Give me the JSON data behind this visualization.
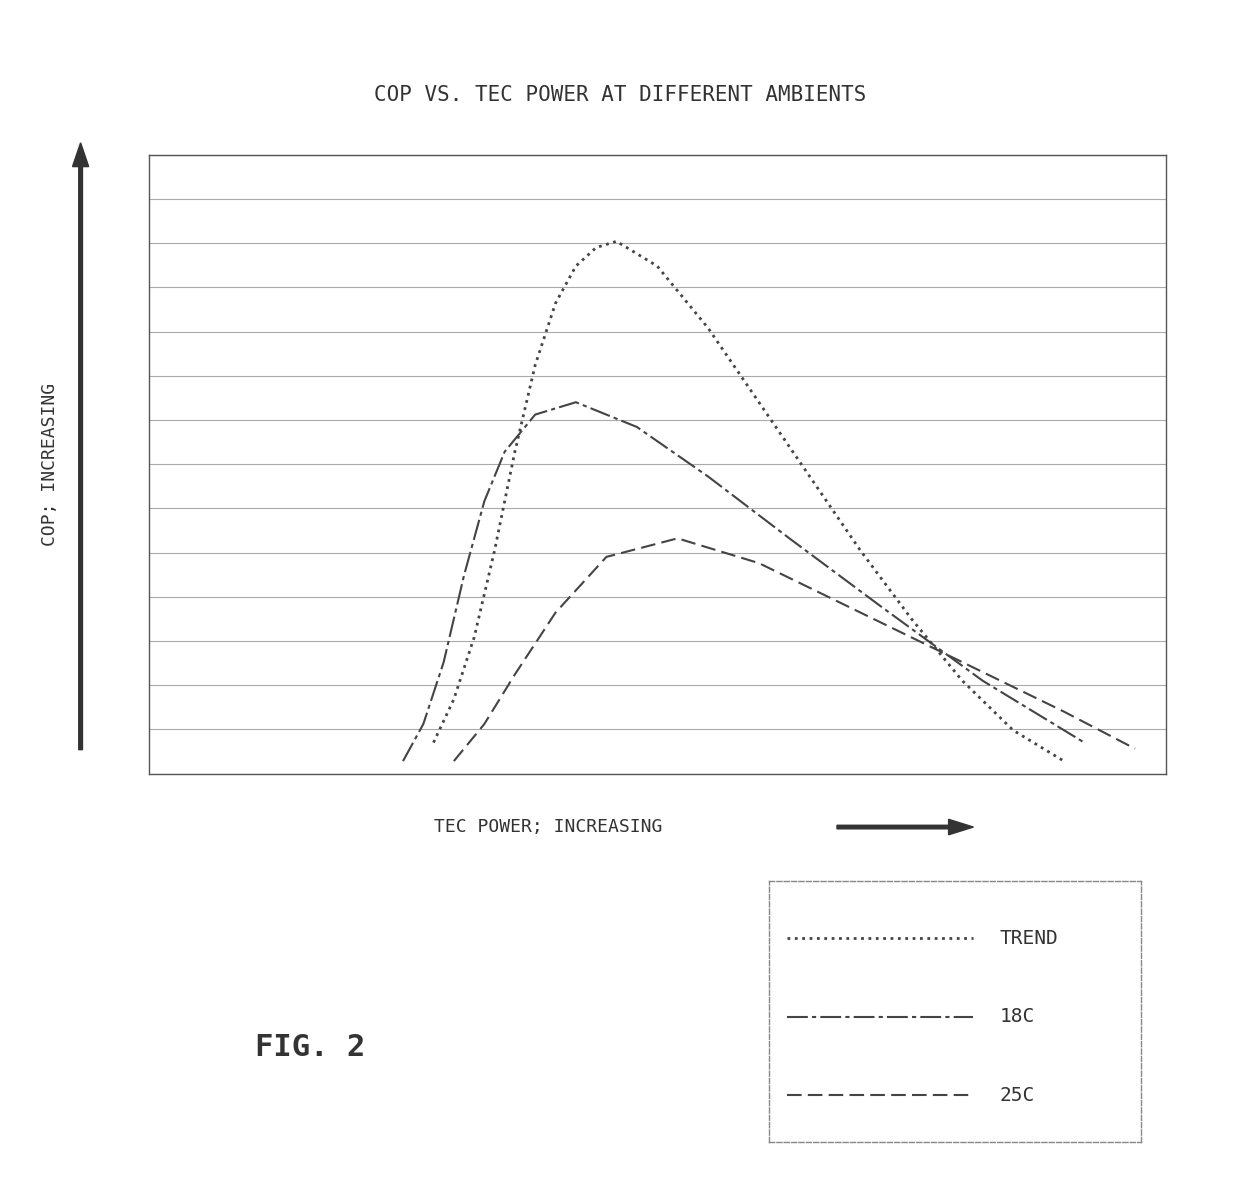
{
  "title": "COP VS. TEC POWER AT DIFFERENT AMBIENTS",
  "xlabel": "TEC POWER; INCREASING",
  "ylabel": "COP; INCREASING",
  "fig_label": "FIG. 2",
  "background_color": "#ffffff",
  "plot_bg_color": "#ffffff",
  "line_color": "#555555",
  "grid_color": "#aaaaaa",
  "num_hgrid_lines": 14,
  "legend_entries": [
    "TREND",
    "18C",
    "25C"
  ],
  "trend_x": [
    0.28,
    0.3,
    0.32,
    0.34,
    0.36,
    0.38,
    0.4,
    0.42,
    0.44,
    0.46,
    0.5,
    0.55,
    0.6,
    0.65,
    0.7,
    0.75,
    0.8,
    0.85,
    0.9
  ],
  "trend_y": [
    0.05,
    0.12,
    0.22,
    0.36,
    0.52,
    0.66,
    0.76,
    0.82,
    0.85,
    0.86,
    0.82,
    0.72,
    0.6,
    0.48,
    0.36,
    0.25,
    0.15,
    0.07,
    0.02
  ],
  "curve18_x": [
    0.25,
    0.27,
    0.29,
    0.31,
    0.33,
    0.35,
    0.38,
    0.42,
    0.48,
    0.55,
    0.63,
    0.72,
    0.82,
    0.92
  ],
  "curve18_y": [
    0.02,
    0.08,
    0.18,
    0.32,
    0.44,
    0.52,
    0.58,
    0.6,
    0.56,
    0.48,
    0.38,
    0.27,
    0.15,
    0.05
  ],
  "curve25_x": [
    0.3,
    0.33,
    0.36,
    0.4,
    0.45,
    0.52,
    0.6,
    0.7,
    0.8,
    0.9,
    0.97
  ],
  "curve25_y": [
    0.02,
    0.08,
    0.16,
    0.26,
    0.35,
    0.38,
    0.34,
    0.26,
    0.18,
    0.1,
    0.04
  ]
}
